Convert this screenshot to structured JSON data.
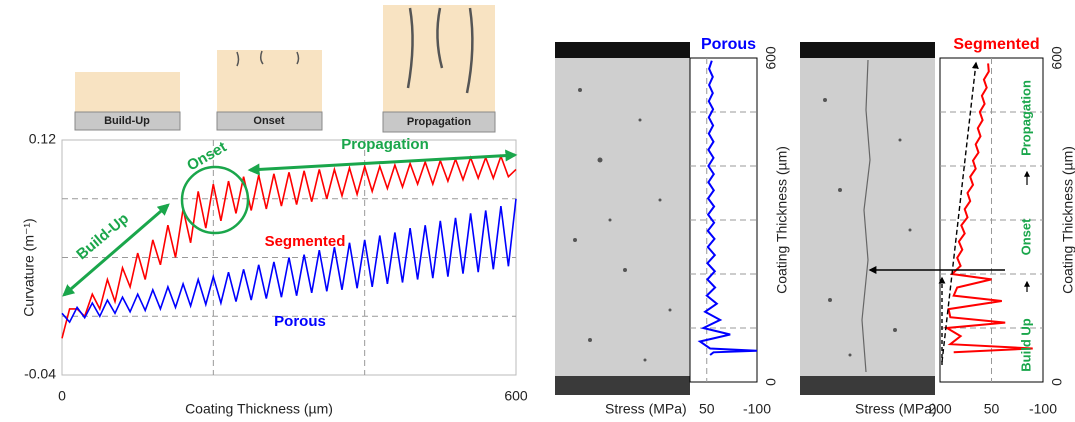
{
  "schematic": {
    "labels": [
      "Build-Up",
      "Onset",
      "Propagation"
    ]
  },
  "chart_data": [
    {
      "type": "line",
      "xlabel": "Coating Thickness (µm)",
      "ylabel": "Curvature (m⁻¹)",
      "x": [
        0,
        10,
        20,
        30,
        40,
        50,
        60,
        70,
        80,
        90,
        100,
        110,
        120,
        130,
        140,
        150,
        160,
        170,
        180,
        190,
        200,
        210,
        220,
        230,
        240,
        250,
        260,
        270,
        280,
        290,
        300,
        310,
        320,
        330,
        340,
        350,
        360,
        370,
        380,
        390,
        400,
        410,
        420,
        430,
        440,
        450,
        460,
        470,
        480,
        490,
        500,
        510,
        520,
        530,
        540,
        550,
        560,
        570,
        580,
        590,
        600
      ],
      "series": [
        {
          "name": "Segmented",
          "color": "#ff0000",
          "values": [
            -0.015,
            0.005,
            0.005,
            0.0,
            0.015,
            0.005,
            0.025,
            0.01,
            0.033,
            0.02,
            0.043,
            0.025,
            0.052,
            0.035,
            0.062,
            0.04,
            0.073,
            0.05,
            0.085,
            0.06,
            0.09,
            0.065,
            0.092,
            0.07,
            0.095,
            0.072,
            0.096,
            0.073,
            0.097,
            0.075,
            0.098,
            0.076,
            0.099,
            0.078,
            0.1,
            0.08,
            0.1,
            0.082,
            0.101,
            0.083,
            0.102,
            0.085,
            0.102,
            0.087,
            0.103,
            0.088,
            0.104,
            0.09,
            0.105,
            0.09,
            0.106,
            0.092,
            0.107,
            0.093,
            0.108,
            0.094,
            0.108,
            0.094,
            0.109,
            0.095,
            0.1
          ]
        },
        {
          "name": "Porous",
          "color": "#0000ff",
          "values": [
            0.002,
            -0.004,
            0.006,
            -0.001,
            0.009,
            0.0,
            0.011,
            0.002,
            0.013,
            0.003,
            0.015,
            0.004,
            0.018,
            0.005,
            0.02,
            0.006,
            0.022,
            0.007,
            0.025,
            0.008,
            0.027,
            0.009,
            0.03,
            0.01,
            0.032,
            0.011,
            0.035,
            0.012,
            0.037,
            0.013,
            0.04,
            0.014,
            0.042,
            0.016,
            0.045,
            0.017,
            0.047,
            0.018,
            0.05,
            0.019,
            0.052,
            0.02,
            0.055,
            0.022,
            0.057,
            0.023,
            0.06,
            0.025,
            0.062,
            0.026,
            0.065,
            0.027,
            0.067,
            0.029,
            0.07,
            0.03,
            0.072,
            0.032,
            0.075,
            0.034,
            0.08
          ]
        }
      ],
      "xlim": [
        0,
        600
      ],
      "ylim": [
        -0.04,
        0.12
      ],
      "xticks": [
        0,
        600
      ],
      "yticks": [
        -0.04,
        0.12
      ],
      "xgrid": [
        200,
        400
      ],
      "ygrid": [
        0,
        0.04,
        0.08
      ],
      "annotations": [
        "Build-Up",
        "Onset",
        "Propagation"
      ]
    },
    {
      "type": "profile",
      "title": "Porous",
      "xlabel": "Stress (MPa)",
      "ylabel": "Coating Thickness (µm)",
      "color": "#0000ff",
      "y": [
        50,
        55,
        58,
        62,
        75,
        88,
        100,
        115,
        130,
        145,
        160,
        175,
        190,
        205,
        220,
        235,
        250,
        265,
        280,
        295,
        310,
        325,
        340,
        355,
        370,
        385,
        400,
        415,
        430,
        445,
        460,
        475,
        490,
        505,
        520,
        535,
        550,
        565,
        580,
        595
      ],
      "values": [
        40,
        30,
        -100,
        40,
        70,
        -20,
        60,
        10,
        55,
        20,
        50,
        25,
        48,
        26,
        48,
        26,
        47,
        27,
        47,
        28,
        46,
        28,
        46,
        29,
        45,
        29,
        45,
        30,
        45,
        30,
        44,
        31,
        44,
        31,
        44,
        32,
        43,
        32,
        43,
        35
      ],
      "xlim": [
        100,
        -100
      ],
      "ylim": [
        0,
        600
      ],
      "xticks": [
        50,
        -100
      ],
      "yticks": [
        0,
        600
      ],
      "xgrid": [
        50
      ],
      "ygrid": [
        100,
        200,
        300,
        400,
        500
      ]
    },
    {
      "type": "profile",
      "title": "Segmented",
      "xlabel": "Stress (MPa)",
      "ylabel": "Coating Thickness (µm)",
      "color": "#ff0000",
      "y": [
        55,
        62,
        70,
        85,
        100,
        110,
        120,
        135,
        150,
        160,
        175,
        190,
        200,
        215,
        230,
        245,
        260,
        275,
        290,
        305,
        320,
        335,
        350,
        365,
        380,
        395,
        410,
        425,
        440,
        455,
        470,
        485,
        500,
        515,
        530,
        545,
        560,
        575,
        590
      ],
      "values": [
        160,
        -70,
        170,
        140,
        180,
        10,
        170,
        175,
        20,
        160,
        150,
        50,
        165,
        140,
        150,
        135,
        145,
        128,
        138,
        120,
        128,
        112,
        120,
        104,
        112,
        96,
        104,
        88,
        96,
        82,
        90,
        76,
        84,
        70,
        78,
        64,
        72,
        58,
        60
      ],
      "xlim": [
        200,
        -100
      ],
      "ylim": [
        0,
        600
      ],
      "xticks": [
        200,
        50,
        -100
      ],
      "yticks": [
        0,
        600
      ],
      "xgrid": [
        50
      ],
      "ygrid": [
        100,
        200,
        300,
        400,
        500
      ],
      "annotations": [
        "Build Up",
        "Onset",
        "Propagation"
      ]
    }
  ]
}
